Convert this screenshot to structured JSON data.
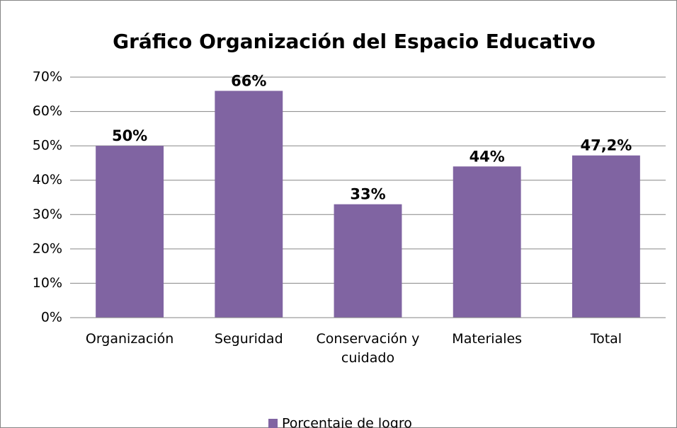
{
  "chart_data": {
    "type": "bar",
    "title": "Gráfico Organización del Espacio Educativo",
    "categories": [
      "Organización",
      "Seguridad",
      "Conservación y cuidado",
      "Materiales",
      "Total"
    ],
    "series": [
      {
        "name": "Porcentaje de logro",
        "color": "#8064a2",
        "values": [
          50,
          66,
          33,
          44,
          47.2
        ],
        "value_labels": [
          "50%",
          "66%",
          "33%",
          "44%",
          "47,2%"
        ]
      }
    ],
    "ylim": [
      0,
      70
    ],
    "yticks": [
      {
        "value": 0,
        "label": "0%"
      },
      {
        "value": 10,
        "label": "10%"
      },
      {
        "value": 20,
        "label": "20%"
      },
      {
        "value": 30,
        "label": "30%"
      },
      {
        "value": 40,
        "label": "40%"
      },
      {
        "value": 50,
        "label": "50%"
      },
      {
        "value": 60,
        "label": "60%"
      },
      {
        "value": 70,
        "label": "70%"
      }
    ],
    "grid": true,
    "legend": "bottom"
  }
}
